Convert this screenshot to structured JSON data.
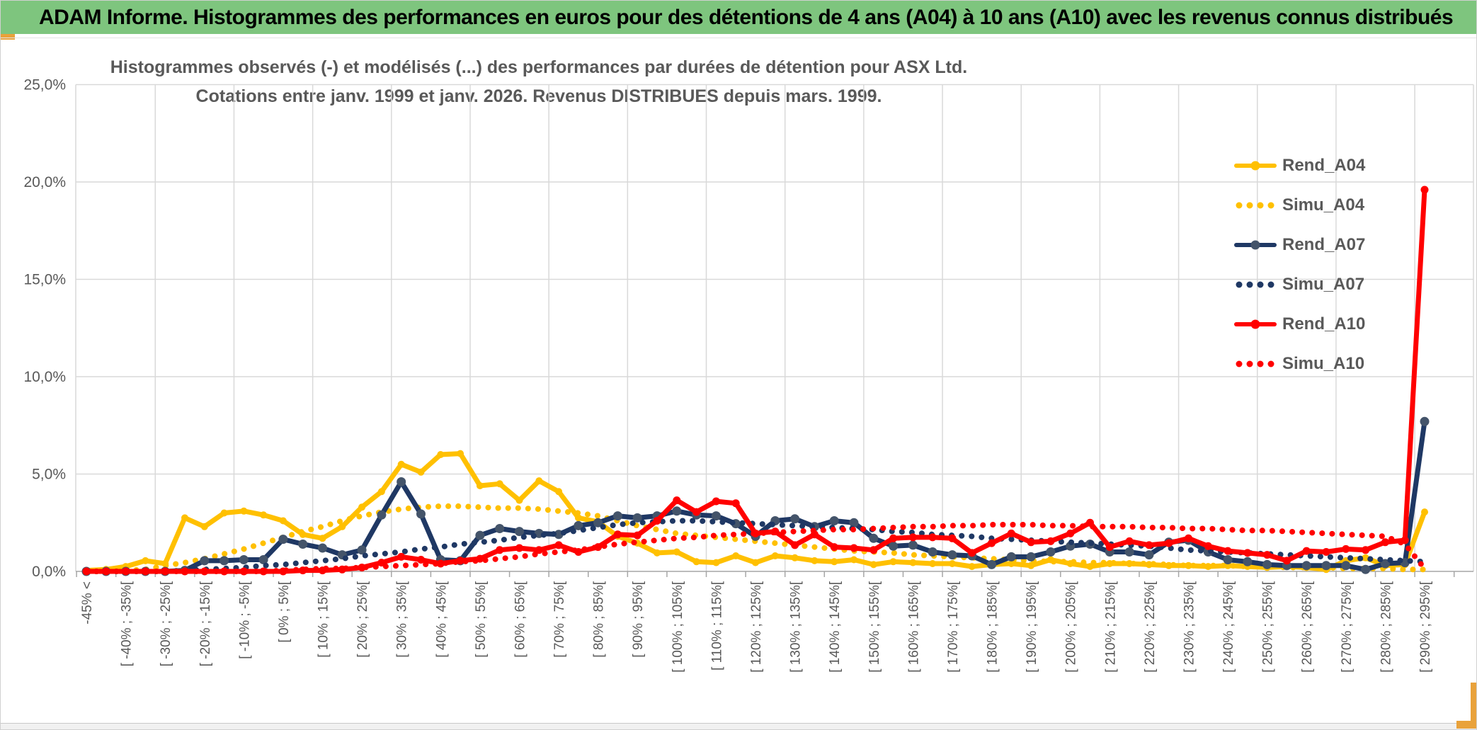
{
  "header": {
    "title": "ADAM Informe. Histogrammes des performances en euros pour des détentions de 4 ans (A04) à 10 ans (A10) avec les revenus connus distribués",
    "bg_color": "#7EC57E",
    "accent_gold": "#E9A23B"
  },
  "chart_data": {
    "type": "line",
    "title_line1": "Histogrammes observés (-) et modélisés (...) des performances par durées de détention pour ASX Ltd.",
    "title_line2": "Cotations entre janv. 1999 et janv. 2026. Revenus DISTRIBUES depuis mars. 1999.",
    "ylim": [
      0,
      25
    ],
    "y_ticks": [
      "0,0%",
      "5,0%",
      "10,0%",
      "15,0%",
      "20,0%",
      "25,0%"
    ],
    "grid": true,
    "legend_position": "right",
    "x_label_every_n_bins": 2,
    "x_tick_labels": [
      "-45% <",
      "[ -40% ; -35%[",
      "[ -30% ; -25%[",
      "[ -20% ; -15%[",
      "[ -10% ; -5%[",
      "[ 0% ; 5%[",
      "[ 10% ; 15%[",
      "[ 20% ; 25%[",
      "[ 30% ; 35%[",
      "[ 40% ; 45%[",
      "[ 50% ; 55%[",
      "[ 60% ; 65%[",
      "[ 70% ; 75%[",
      "[ 80% ; 85%[",
      "[ 90% ; 95%[",
      "[ 100% ; 105%[",
      "[ 110% ; 115%[",
      "[ 120% ; 125%[",
      "[ 130% ; 135%[",
      "[ 140% ; 145%[",
      "[ 150% ; 155%[",
      "[ 160% ; 165%[",
      "[ 170% ; 175%[",
      "[ 180% ; 185%[",
      "[ 190% ; 195%[",
      "[ 200% ; 205%[",
      "[ 210% ; 215%[",
      "[ 220% ; 225%[",
      "[ 230% ; 235%[",
      "[ 240% ; 245%[",
      "[ 250% ; 255%[",
      "[ 260% ; 265%[",
      "[ 270% ; 275%[",
      "[ 280% ; 285%[",
      "[ 290% ; 295%["
    ],
    "series": [
      {
        "name": "Rend_A04",
        "style": "solid",
        "color": "#FFC000",
        "marker_color": "#FFC000",
        "marker_r": 5,
        "values": [
          0.05,
          0.1,
          0.25,
          0.55,
          0.4,
          2.75,
          2.3,
          3.0,
          3.1,
          2.9,
          2.6,
          1.9,
          1.7,
          2.3,
          3.3,
          4.1,
          5.5,
          5.1,
          6.0,
          6.05,
          4.4,
          4.5,
          3.65,
          4.65,
          4.1,
          2.75,
          2.55,
          1.8,
          1.45,
          0.95,
          1.0,
          0.5,
          0.45,
          0.8,
          0.45,
          0.8,
          0.7,
          0.55,
          0.5,
          0.6,
          0.35,
          0.5,
          0.45,
          0.4,
          0.4,
          0.25,
          0.35,
          0.4,
          0.3,
          0.6,
          0.4,
          0.25,
          0.4,
          0.4,
          0.35,
          0.3,
          0.3,
          0.25,
          0.3,
          0.25,
          0.2,
          0.25,
          0.2,
          0.1,
          0.55,
          0.7,
          0.3,
          0.35,
          3.05
        ]
      },
      {
        "name": "Simu_A04",
        "style": "dotted",
        "color": "#FFC000",
        "values": [
          0,
          0,
          0.05,
          0.1,
          0.3,
          0.45,
          0.65,
          0.9,
          1.15,
          1.45,
          1.75,
          2.05,
          2.3,
          2.6,
          2.85,
          3.05,
          3.2,
          3.3,
          3.35,
          3.35,
          3.3,
          3.25,
          3.25,
          3.2,
          3.1,
          3.0,
          2.85,
          2.6,
          2.35,
          2.15,
          1.95,
          1.85,
          1.75,
          1.65,
          1.55,
          1.45,
          1.35,
          1.25,
          1.15,
          1.05,
          1.0,
          0.95,
          0.85,
          0.8,
          0.75,
          0.7,
          0.65,
          0.6,
          0.55,
          0.5,
          0.5,
          0.45,
          0.45,
          0.4,
          0.4,
          0.35,
          0.3,
          0.3,
          0.3,
          0.25,
          0.25,
          0.2,
          0.2,
          0.2,
          0.15,
          0.15,
          0.15,
          0.1,
          0.1
        ]
      },
      {
        "name": "Rend_A07",
        "style": "solid",
        "color": "#1F3864",
        "marker_color": "#44546A",
        "marker_r": 6.5,
        "values": [
          0,
          0,
          0,
          0,
          0,
          0.05,
          0.55,
          0.55,
          0.6,
          0.6,
          1.65,
          1.4,
          1.2,
          0.85,
          1.1,
          2.9,
          4.6,
          2.95,
          0.6,
          0.55,
          1.85,
          2.2,
          2.05,
          1.95,
          1.9,
          2.35,
          2.5,
          2.85,
          2.75,
          2.85,
          3.1,
          2.9,
          2.85,
          2.45,
          1.8,
          2.6,
          2.7,
          2.3,
          2.6,
          2.5,
          1.7,
          1.3,
          1.35,
          1.0,
          0.85,
          0.8,
          0.35,
          0.75,
          0.75,
          1.0,
          1.3,
          1.4,
          1.0,
          1.0,
          0.85,
          1.5,
          1.6,
          1.0,
          0.6,
          0.5,
          0.35,
          0.3,
          0.3,
          0.3,
          0.3,
          0.1,
          0.4,
          0.45,
          7.7
        ]
      },
      {
        "name": "Simu_A07",
        "style": "dotted",
        "color": "#1F3864",
        "values": [
          0,
          0,
          0,
          0,
          0,
          0.05,
          0.1,
          0.15,
          0.2,
          0.3,
          0.35,
          0.45,
          0.55,
          0.65,
          0.8,
          0.9,
          1.0,
          1.15,
          1.25,
          1.4,
          1.5,
          1.6,
          1.75,
          1.85,
          1.95,
          2.1,
          2.25,
          2.4,
          2.5,
          2.55,
          2.6,
          2.6,
          2.55,
          2.5,
          2.45,
          2.4,
          2.35,
          2.3,
          2.25,
          2.2,
          2.15,
          2.05,
          2.0,
          1.9,
          1.85,
          1.8,
          1.7,
          1.65,
          1.6,
          1.55,
          1.5,
          1.45,
          1.4,
          1.35,
          1.3,
          1.2,
          1.1,
          1.05,
          1.0,
          0.95,
          0.9,
          0.85,
          0.8,
          0.75,
          0.7,
          0.65,
          0.6,
          0.55,
          0.5
        ]
      },
      {
        "name": "Rend_A10",
        "style": "solid",
        "color": "#FF0000",
        "marker_color": "#FF0000",
        "marker_r": 5.5,
        "values": [
          0,
          0,
          0,
          0,
          0,
          0,
          0,
          0,
          0,
          0,
          0,
          0.05,
          0.05,
          0.1,
          0.2,
          0.45,
          0.75,
          0.6,
          0.4,
          0.55,
          0.65,
          1.1,
          1.2,
          1.1,
          1.35,
          1.0,
          1.25,
          1.9,
          1.85,
          2.6,
          3.65,
          3.05,
          3.6,
          3.5,
          1.95,
          2.05,
          1.35,
          1.9,
          1.25,
          1.2,
          1.1,
          1.7,
          1.75,
          1.75,
          1.7,
          0.95,
          1.45,
          1.95,
          1.5,
          1.55,
          1.95,
          2.5,
          1.25,
          1.55,
          1.35,
          1.45,
          1.7,
          1.3,
          1.05,
          0.95,
          0.85,
          0.55,
          1.05,
          1.0,
          1.15,
          1.1,
          1.5,
          1.6,
          19.6
        ]
      },
      {
        "name": "Simu_A10",
        "style": "dotted",
        "color": "#FF0000",
        "values": [
          0,
          0,
          0,
          0,
          0,
          0,
          0,
          0,
          0,
          0,
          0.05,
          0.1,
          0.15,
          0.15,
          0.2,
          0.25,
          0.3,
          0.35,
          0.4,
          0.5,
          0.55,
          0.65,
          0.75,
          0.9,
          1.0,
          1.1,
          1.25,
          1.4,
          1.5,
          1.6,
          1.7,
          1.75,
          1.85,
          1.9,
          1.95,
          2.0,
          2.05,
          2.1,
          2.15,
          2.15,
          2.2,
          2.25,
          2.3,
          2.3,
          2.35,
          2.35,
          2.4,
          2.4,
          2.4,
          2.35,
          2.35,
          2.3,
          2.3,
          2.3,
          2.25,
          2.25,
          2.2,
          2.2,
          2.15,
          2.1,
          2.1,
          2.05,
          2.0,
          1.95,
          1.9,
          1.85,
          1.8,
          1.4,
          0.15
        ]
      }
    ],
    "colors": {
      "grid": "#D9D9D9",
      "axis": "#A6A6A6",
      "text": "#595959"
    }
  }
}
